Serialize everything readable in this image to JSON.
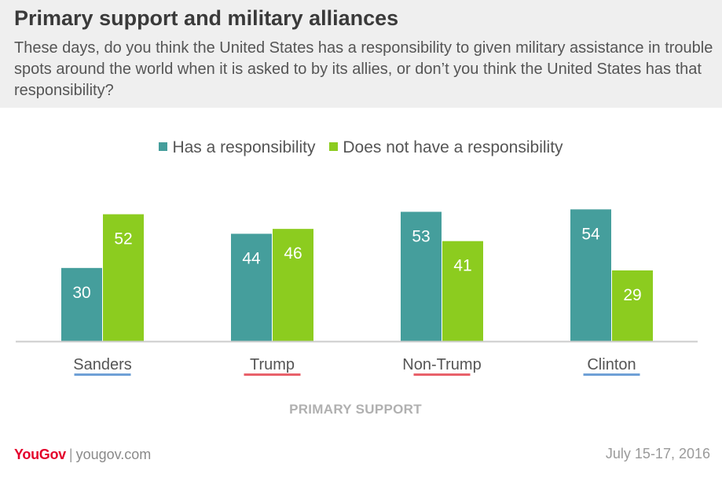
{
  "header": {
    "title": "Primary support and military alliances",
    "question": "These days, do you think the United States has a responsibility to given military assistance in trouble spots around the world when it is asked to by its allies, or don’t you think the United States has that responsibility?"
  },
  "legend": {
    "items": [
      {
        "label": "Has a responsibility",
        "color": "#459e9c"
      },
      {
        "label": "Does not have a responsibility",
        "color": "#8ccc1f"
      }
    ]
  },
  "footer": {
    "logo": "YouGov",
    "site": "yougov.com",
    "date": "July 15-17, 2016"
  },
  "chart_data": {
    "type": "bar",
    "categories": [
      "Sanders",
      "Trump",
      "Non-Trump",
      "Clinton"
    ],
    "category_underline_colors": [
      "#6fa0d6",
      "#e8616a",
      "#e8616a",
      "#6fa0d6"
    ],
    "series": [
      {
        "name": "Has a responsibility",
        "values": [
          30,
          44,
          53,
          54
        ],
        "color": "#459e9c"
      },
      {
        "name": "Does not have a responsibility",
        "values": [
          52,
          46,
          41,
          29
        ],
        "color": "#8ccc1f"
      }
    ],
    "title": "Primary support and military alliances",
    "xlabel": "PRIMARY SUPPORT",
    "ylabel": "",
    "ylim": [
      0,
      57
    ],
    "grid": false,
    "legend_position": "top-center",
    "data_labels": true
  }
}
